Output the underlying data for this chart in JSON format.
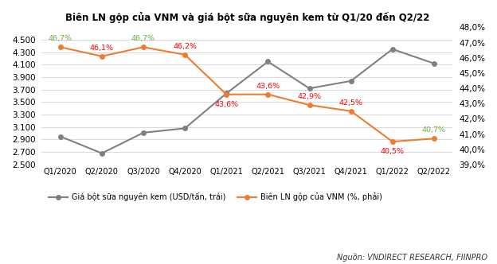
{
  "title": "Biên LN gộp của VNM và giá bột sữa nguyên kem từ Q1/20 đến Q2/22",
  "categories": [
    "Q1/2020",
    "Q2/2020",
    "Q3/2020",
    "Q4/2020",
    "Q1/2021",
    "Q2/2021",
    "Q3/2021",
    "Q4/2021",
    "Q1/2022",
    "Q2/2022"
  ],
  "milk_powder": [
    2950,
    2680,
    3010,
    3080,
    3640,
    4150,
    3720,
    3840,
    4350,
    4120
  ],
  "gross_margin": [
    46.7,
    46.1,
    46.7,
    46.2,
    43.6,
    43.6,
    42.9,
    42.5,
    40.5,
    40.7
  ],
  "gross_margin_labels": [
    "46,7%",
    "46,1%",
    "46,7%",
    "46,2%",
    "43,6%",
    "43,6%",
    "42,9%",
    "42,5%",
    "40,5%",
    "40,7%"
  ],
  "gross_margin_label_colors": [
    "#70ad47",
    "#ff0000",
    "#70ad47",
    "#ff0000",
    "#ff0000",
    "#ff0000",
    "#ff0000",
    "#ff0000",
    "#ff0000",
    "#70ad47"
  ],
  "gross_margin_label_va": [
    "bottom",
    "bottom",
    "bottom",
    "bottom",
    "top",
    "bottom",
    "bottom",
    "bottom",
    "top",
    "bottom"
  ],
  "milk_powder_color": "#808080",
  "gross_margin_color": "#ed7d31",
  "left_ylim": [
    2500,
    4700
  ],
  "right_ylim": [
    39.0,
    48.0
  ],
  "left_yticks": [
    2500,
    2700,
    2900,
    3100,
    3300,
    3500,
    3700,
    3900,
    4100,
    4300,
    4500
  ],
  "right_yticks": [
    39.0,
    40.0,
    41.0,
    42.0,
    43.0,
    44.0,
    45.0,
    46.0,
    47.0,
    48.0
  ],
  "legend1": "Giá bột sữa nguyên kem (USD/tấn, trái)",
  "legend2": "Biên LN gộp của VNM (%, phải)",
  "source": "Nguồn: VNDIRECT RESEARCH, FIINPRO",
  "background_color": "#ffffff",
  "grid_color": "#d3d3d3"
}
